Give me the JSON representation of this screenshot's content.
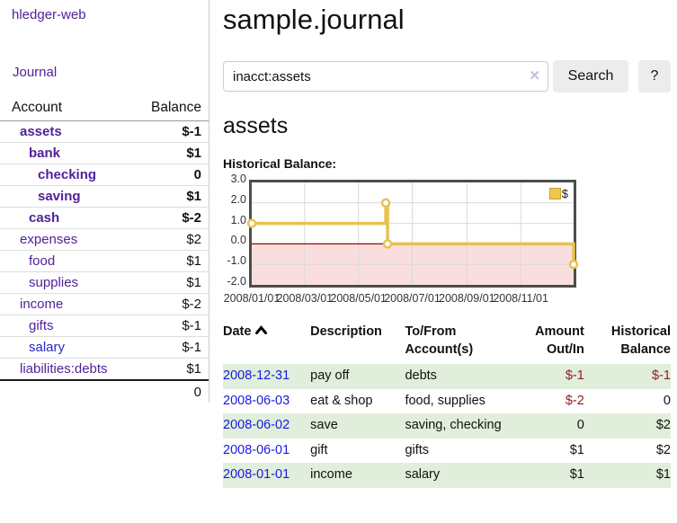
{
  "colors": {
    "link_purple": "#512299",
    "link_blue": "#2525d0",
    "date_blue": "#1a1ae0",
    "neg_strong": "#8b1d1d",
    "neg_soft": "#c07c7c",
    "stripe_green": "#e0eedb",
    "gold_line": "#e8c251",
    "pink_region": "#fadede",
    "zero_line": "#990000",
    "grid": "#d9d9d9"
  },
  "sidebar": {
    "brand": "hledger-web",
    "journal_link": "Journal",
    "accounts_table": {
      "headers": {
        "account": "Account",
        "balance": "Balance"
      },
      "rows": [
        {
          "name": "assets",
          "indent": 1,
          "balance": "$-1",
          "matched": true,
          "tone": "neg-strong",
          "link": "visited"
        },
        {
          "name": "bank",
          "indent": 2,
          "balance": "$1",
          "matched": true,
          "tone": "pos",
          "link": "visited"
        },
        {
          "name": "checking",
          "indent": 3,
          "balance": "0",
          "matched": true,
          "tone": "pos",
          "link": "visited"
        },
        {
          "name": "saving",
          "indent": 3,
          "balance": "$1",
          "matched": true,
          "tone": "pos",
          "link": "visited"
        },
        {
          "name": "cash",
          "indent": 2,
          "balance": "$-2",
          "matched": true,
          "tone": "neg-strong",
          "link": "visited"
        },
        {
          "name": "expenses",
          "indent": 1,
          "balance": "$2",
          "matched": false,
          "tone": "pos",
          "link": "visited"
        },
        {
          "name": "food",
          "indent": 2,
          "balance": "$1",
          "matched": false,
          "tone": "pos",
          "link": "visited"
        },
        {
          "name": "supplies",
          "indent": 2,
          "balance": "$1",
          "matched": false,
          "tone": "pos",
          "link": "visited"
        },
        {
          "name": "income",
          "indent": 1,
          "balance": "$-2",
          "matched": false,
          "tone": "neg-soft",
          "link": "visited"
        },
        {
          "name": "gifts",
          "indent": 2,
          "balance": "$-1",
          "matched": false,
          "tone": "neg-soft",
          "link": "visited"
        },
        {
          "name": "salary",
          "indent": 2,
          "balance": "$-1",
          "matched": false,
          "tone": "neg-soft",
          "link": "unvisited"
        },
        {
          "name": "liabilities:debts",
          "indent": 1,
          "balance": "$1",
          "matched": false,
          "tone": "pos",
          "link": "visited"
        }
      ],
      "total": "0"
    }
  },
  "main": {
    "title": "sample.journal",
    "search": {
      "value": "inacct:assets",
      "clear_icon": "✕",
      "button_label": "Search",
      "help_label": "?"
    },
    "account_heading": "assets",
    "chart_title": "Historical Balance:"
  },
  "chart_data": {
    "type": "line",
    "step": "after",
    "title": "Historical Balance:",
    "legend": [
      {
        "label": "$",
        "color": "#ecc64e"
      }
    ],
    "ylim": [
      -2,
      3
    ],
    "yticks": [
      3,
      2,
      1,
      0,
      -1,
      -2
    ],
    "ytick_labels": [
      "3.0",
      "2.0",
      "1.0",
      "0.0",
      "-1.0",
      "-2.0"
    ],
    "xlim_days": [
      0,
      365
    ],
    "xticks": [
      {
        "day": 0,
        "label": "2008/01/01"
      },
      {
        "day": 60,
        "label": "2008/03/01"
      },
      {
        "day": 121,
        "label": "2008/05/01"
      },
      {
        "day": 182,
        "label": "2008/07/01"
      },
      {
        "day": 244,
        "label": "2008/09/01"
      },
      {
        "day": 305,
        "label": "2008/11/01"
      }
    ],
    "points": [
      {
        "date": "2008-01-01",
        "day": 0,
        "value": 1
      },
      {
        "date": "2008-06-01",
        "day": 152,
        "value": 2
      },
      {
        "date": "2008-06-03",
        "day": 154,
        "value": 0
      },
      {
        "date": "2008-12-31",
        "day": 365,
        "value": -1
      }
    ],
    "negative_region": true
  },
  "register": {
    "headers": [
      {
        "lines": [
          "Date"
        ],
        "align": "left",
        "sorted": "asc"
      },
      {
        "lines": [
          "Description"
        ],
        "align": "left"
      },
      {
        "lines": [
          "To/From",
          "Account(s)"
        ],
        "align": "left"
      },
      {
        "lines": [
          "Amount",
          "Out/In"
        ],
        "align": "right"
      },
      {
        "lines": [
          "Historical",
          "Balance"
        ],
        "align": "right"
      }
    ],
    "rows": [
      {
        "date": "2008-12-31",
        "description": "pay off",
        "accounts": "debts",
        "amount": "$-1",
        "amount_neg": true,
        "balance": "$-1",
        "balance_neg": true,
        "stripe": true
      },
      {
        "date": "2008-06-03",
        "description": "eat & shop",
        "accounts": "food, supplies",
        "amount": "$-2",
        "amount_neg": true,
        "balance": "0",
        "balance_neg": false,
        "stripe": false
      },
      {
        "date": "2008-06-02",
        "description": "save",
        "accounts": "saving, checking",
        "amount": "0",
        "amount_neg": false,
        "balance": "$2",
        "balance_neg": false,
        "stripe": true
      },
      {
        "date": "2008-06-01",
        "description": "gift",
        "accounts": "gifts",
        "amount": "$1",
        "amount_neg": false,
        "balance": "$2",
        "balance_neg": false,
        "stripe": false
      },
      {
        "date": "2008-01-01",
        "description": "income",
        "accounts": "salary",
        "amount": "$1",
        "amount_neg": false,
        "balance": "$1",
        "balance_neg": false,
        "stripe": true
      }
    ]
  }
}
